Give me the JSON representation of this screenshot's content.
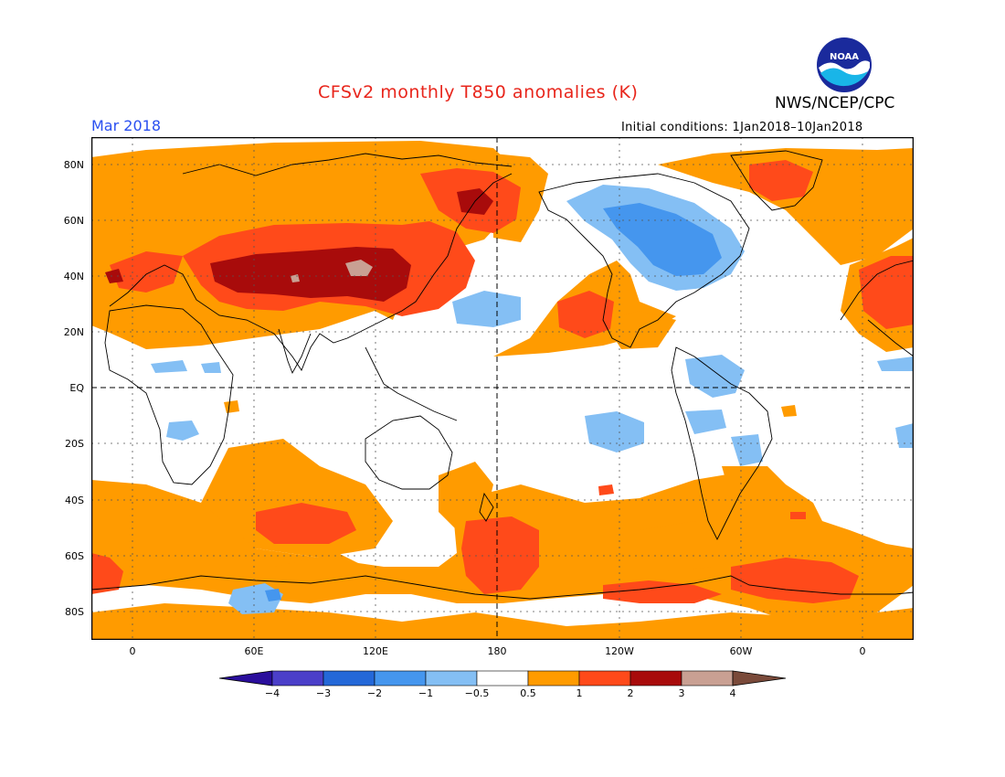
{
  "header": {
    "title": "CFSv2 monthly T850 anomalies (K)",
    "org": "NWS/NCEP/CPC",
    "month": "Mar 2018",
    "initial_conditions": "Initial conditions: 1Jan2018–10Jan2018",
    "logo_text": "NOAA"
  },
  "axes": {
    "y_labels": [
      "80N",
      "60N",
      "40N",
      "20N",
      "EQ",
      "20S",
      "40S",
      "60S",
      "80S"
    ],
    "x_labels": [
      "0",
      "60E",
      "120E",
      "180",
      "120W",
      "60W",
      "0"
    ]
  },
  "legend": {
    "labels": [
      "−4",
      "−3",
      "−2",
      "−1",
      "−0.5",
      "0.5",
      "1",
      "2",
      "3",
      "4"
    ],
    "colors": [
      "#2a0e9c",
      "#4b3fc9",
      "#2468d8",
      "#4596ee",
      "#84bff4",
      "#ffffff",
      "#ff9b00",
      "#ff4a1a",
      "#a80b0b",
      "#c9a093",
      "#7a4a3a"
    ]
  },
  "colors": {
    "title": "#e8251b",
    "month": "#2a4ff0",
    "cold_1": "#84bff4",
    "cold_2": "#4596ee",
    "warm_1": "#ff9b00",
    "warm_2": "#ff4a1a",
    "warm_3": "#a80b0b",
    "warm_4": "#c9a093"
  }
}
